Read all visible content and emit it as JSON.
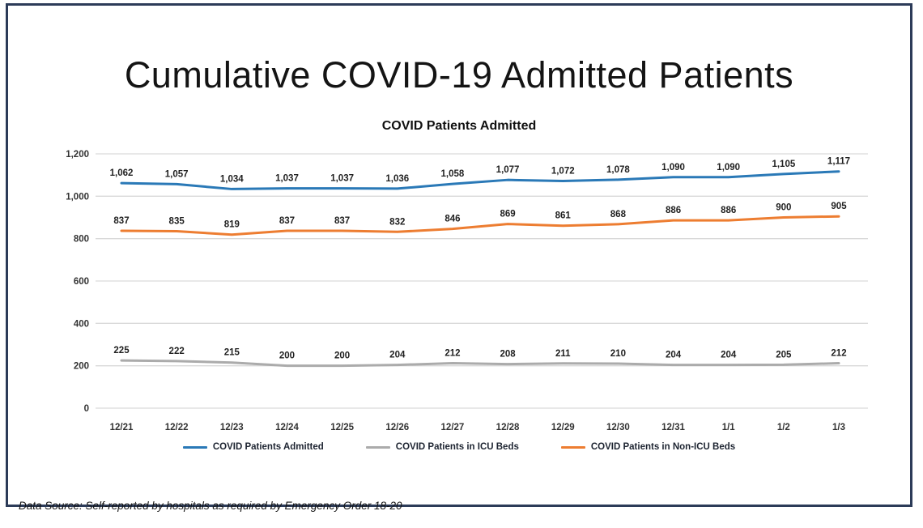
{
  "slide": {
    "title": "Cumulative COVID-19 Admitted Patients",
    "footer": "Data Source: Self-reported by hospitals as required by Emergency Order 18-20"
  },
  "chart_data": {
    "type": "line",
    "title": "COVID Patients Admitted",
    "categories": [
      "12/21",
      "12/22",
      "12/23",
      "12/24",
      "12/25",
      "12/26",
      "12/27",
      "12/28",
      "12/29",
      "12/30",
      "12/31",
      "1/1",
      "1/2",
      "1/3"
    ],
    "series": [
      {
        "name": "COVID Patients Admitted",
        "color": "#2A79B7",
        "values": [
          1062,
          1057,
          1034,
          1037,
          1037,
          1036,
          1058,
          1077,
          1072,
          1078,
          1090,
          1090,
          1105,
          1117
        ]
      },
      {
        "name": "COVID Patients in ICU Beds",
        "color": "#ABABAB",
        "values": [
          225,
          222,
          215,
          200,
          200,
          204,
          212,
          208,
          211,
          210,
          204,
          204,
          205,
          212
        ]
      },
      {
        "name": "COVID Patients in Non-ICU Beds",
        "color": "#ED7D31",
        "values": [
          837,
          835,
          819,
          837,
          837,
          832,
          846,
          869,
          861,
          868,
          886,
          886,
          900,
          905
        ]
      }
    ],
    "ylim": [
      0,
      1200
    ],
    "ytick_interval": 200,
    "ytick_labels": [
      "0",
      "200",
      "400",
      "600",
      "800",
      "1,000",
      "1,200"
    ],
    "grid": true,
    "legend_position": "bottom",
    "data_labels": true
  },
  "colors": {
    "frame_border": "#2C3B58",
    "gridline": "#D9D9D9",
    "axis_text": "#333333",
    "data_label_text": "#1F1F1F"
  }
}
